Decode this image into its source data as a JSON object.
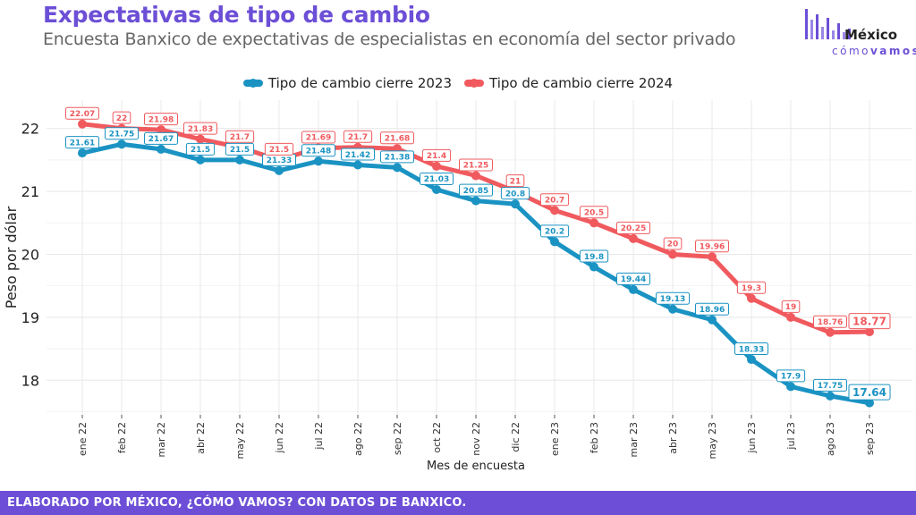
{
  "header": {
    "title": "Expectativas de tipo de cambio",
    "subtitle": "Encuesta Banxico de expectativas de especialistas en economía del sector privado"
  },
  "logo": {
    "word": "México",
    "tag_light": "cómo",
    "tag_bold": "vamos"
  },
  "colors": {
    "title": "#6c4fd6",
    "footer": "#6c4fd6",
    "series_2023": "#1a93c3",
    "series_2024": "#f05a5e",
    "grid": "#e8e8e8"
  },
  "footer": {
    "text": "ELABORADO POR MÉXICO, ¿CÓMO VAMOS? CON DATOS DE BANXICO."
  },
  "chart_data": {
    "type": "line",
    "xlabel": "Mes de encuesta",
    "ylabel": "Peso por dólar",
    "ylim": [
      17.45,
      22.45
    ],
    "yticks": [
      18,
      19,
      20,
      21,
      22
    ],
    "grid": true,
    "legend_position": "top",
    "categories": [
      "ene 22",
      "feb 22",
      "mar 22",
      "abr 22",
      "may 22",
      "jun 22",
      "jul 22",
      "ago 22",
      "sep 22",
      "oct 22",
      "nov 22",
      "dic 22",
      "ene 23",
      "feb 23",
      "mar 23",
      "abr 23",
      "may 23",
      "jun 23",
      "jul 23",
      "ago 23",
      "sep 23"
    ],
    "series": [
      {
        "name": "Tipo de cambio cierre 2023",
        "color": "#1a93c3",
        "values": [
          21.61,
          21.75,
          21.67,
          21.5,
          21.5,
          21.33,
          21.48,
          21.42,
          21.38,
          21.03,
          20.85,
          20.8,
          20.2,
          19.8,
          19.44,
          19.13,
          18.96,
          18.33,
          17.9,
          17.75,
          17.64
        ]
      },
      {
        "name": "Tipo de cambio cierre 2024",
        "color": "#f05a5e",
        "values": [
          22.07,
          22,
          21.98,
          21.83,
          21.7,
          21.5,
          21.69,
          21.7,
          21.68,
          21.4,
          21.25,
          21,
          20.7,
          20.5,
          20.25,
          20,
          19.96,
          19.3,
          19,
          18.76,
          18.77
        ]
      }
    ]
  }
}
